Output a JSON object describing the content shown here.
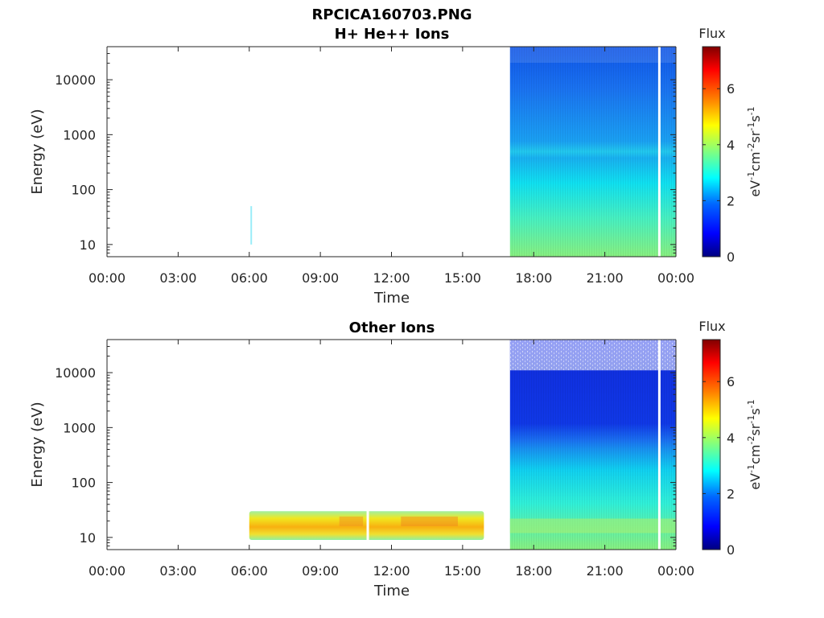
{
  "figure": {
    "title": "RPCICA160703.PNG"
  },
  "colors": {
    "colormap": [
      "#000080",
      "#0000ff",
      "#0080ff",
      "#00ffff",
      "#80ff80",
      "#ffff00",
      "#ff8000",
      "#ff0000",
      "#800000"
    ],
    "axis": "#262626"
  },
  "chart_data": [
    {
      "type": "heatmap",
      "title": "H+ He++ Ions",
      "xlabel": "Time",
      "ylabel": "Energy (eV)",
      "x_ticks": [
        "00:00",
        "03:00",
        "06:00",
        "09:00",
        "12:00",
        "15:00",
        "18:00",
        "21:00",
        "00:00"
      ],
      "x_range_hours": [
        0,
        24
      ],
      "y_scale": "log",
      "y_ticks": [
        "10",
        "100",
        "1000",
        "10000"
      ],
      "y_range": [
        6,
        40000
      ],
      "colorbar": {
        "label": "Flux",
        "unit_base": [
          "eV",
          "cm",
          "sr",
          "s"
        ],
        "unit_exp": [
          "-1",
          "-2",
          "-1",
          "-1"
        ],
        "range": [
          0,
          7.5
        ],
        "ticks": [
          "0",
          "2",
          "4",
          "6"
        ]
      },
      "regions": [
        {
          "t_start": 17.0,
          "t_end": 24.0,
          "e_min": 6,
          "e_max": 40000,
          "flux_at_low_energy": 3.6,
          "flux_at_high_energy": 0.9
        },
        {
          "t_start": 6.05,
          "t_end": 6.1,
          "e_min": 10,
          "e_max": 50,
          "flux_at_low_energy": 2.6,
          "flux_at_high_energy": 2.6
        }
      ],
      "data_gaps_hours": [
        23.3
      ]
    },
    {
      "type": "heatmap",
      "title": "Other Ions",
      "xlabel": "Time",
      "ylabel": "Energy (eV)",
      "x_ticks": [
        "00:00",
        "03:00",
        "06:00",
        "09:00",
        "12:00",
        "15:00",
        "18:00",
        "21:00",
        "00:00"
      ],
      "x_range_hours": [
        0,
        24
      ],
      "y_scale": "log",
      "y_ticks": [
        "10",
        "100",
        "1000",
        "10000"
      ],
      "y_range": [
        6,
        40000
      ],
      "colorbar": {
        "label": "Flux",
        "unit_base": [
          "eV",
          "cm",
          "sr",
          "s"
        ],
        "unit_exp": [
          "-1",
          "-2",
          "-1",
          "-1"
        ],
        "range": [
          0,
          7.5
        ],
        "ticks": [
          "0",
          "2",
          "4",
          "6"
        ]
      },
      "regions": [
        {
          "t_start": 17.0,
          "t_end": 24.0,
          "e_min": 6,
          "e_max": 40000,
          "flux_at_low_energy": 3.7,
          "flux_at_high_energy": 0.8
        },
        {
          "t_start": 6.0,
          "t_end": 15.9,
          "e_min": 9,
          "e_max": 30,
          "flux_at_low_energy": 4.5,
          "flux_at_high_energy": 4.5
        }
      ],
      "data_gaps_hours": [
        11.0,
        23.3
      ]
    }
  ]
}
